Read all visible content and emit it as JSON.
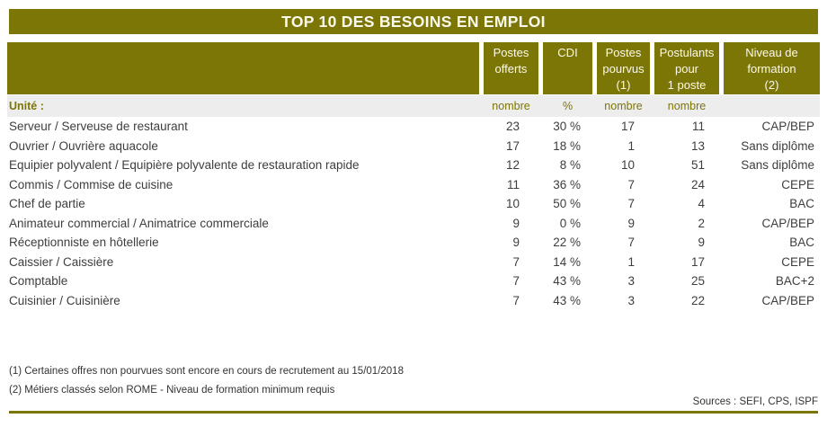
{
  "title": "TOP 10 DES BESOINS EN EMPLOI",
  "colors": {
    "accent": "#7C7606",
    "title-text": "#FCFAEC",
    "unit-bg": "#EDEDED",
    "body-text": "#3E3E3E",
    "note-text": "#333333"
  },
  "table": {
    "unit_label": "Unité :",
    "columns": [
      {
        "label": "",
        "unit": ""
      },
      {
        "label": "Postes\nofferts",
        "unit": "nombre"
      },
      {
        "label": "CDI",
        "unit": "%"
      },
      {
        "label": "Postes\npourvus\n(1)",
        "unit": "nombre"
      },
      {
        "label": "Postulants\npour\n1 poste",
        "unit": "nombre"
      },
      {
        "label": "Niveau de\nformation\n(2)",
        "unit": ""
      }
    ],
    "rows": [
      {
        "job": "Serveur / Serveuse de restaurant",
        "postes_offerts": "23",
        "cdi": "30 %",
        "postes_pourvus": "17",
        "postulants": "11",
        "niveau": "CAP/BEP"
      },
      {
        "job": "Ouvrier / Ouvrière aquacole",
        "postes_offerts": "17",
        "cdi": "18 %",
        "postes_pourvus": "1",
        "postulants": "13",
        "niveau": "Sans diplôme"
      },
      {
        "job": "Equipier polyvalent / Equipière polyvalente de restauration rapide",
        "postes_offerts": "12",
        "cdi": "8 %",
        "postes_pourvus": "10",
        "postulants": "51",
        "niveau": "Sans diplôme"
      },
      {
        "job": "Commis / Commise de cuisine",
        "postes_offerts": "11",
        "cdi": "36 %",
        "postes_pourvus": "7",
        "postulants": "24",
        "niveau": "CEPE"
      },
      {
        "job": "Chef de partie",
        "postes_offerts": "10",
        "cdi": "50 %",
        "postes_pourvus": "7",
        "postulants": "4",
        "niveau": "BAC"
      },
      {
        "job": "Animateur commercial / Animatrice commerciale",
        "postes_offerts": "9",
        "cdi": "0 %",
        "postes_pourvus": "9",
        "postulants": "2",
        "niveau": "CAP/BEP"
      },
      {
        "job": "Réceptionniste en hôtellerie",
        "postes_offerts": "9",
        "cdi": "22 %",
        "postes_pourvus": "7",
        "postulants": "9",
        "niveau": "BAC"
      },
      {
        "job": "Caissier / Caissière",
        "postes_offerts": "7",
        "cdi": "14 %",
        "postes_pourvus": "1",
        "postulants": "17",
        "niveau": "CEPE"
      },
      {
        "job": "Comptable",
        "postes_offerts": "7",
        "cdi": "43 %",
        "postes_pourvus": "3",
        "postulants": "25",
        "niveau": "BAC+2"
      },
      {
        "job": "Cuisinier / Cuisinière",
        "postes_offerts": "7",
        "cdi": "43 %",
        "postes_pourvus": "3",
        "postulants": "22",
        "niveau": "CAP/BEP"
      }
    ]
  },
  "footnotes": [
    "(1) Certaines offres non pourvues sont encore en cours de recrutement au 15/01/2018",
    "(2) Métiers classés selon ROME - Niveau de formation minimum requis"
  ],
  "sources": "Sources : SEFI, CPS, ISPF"
}
